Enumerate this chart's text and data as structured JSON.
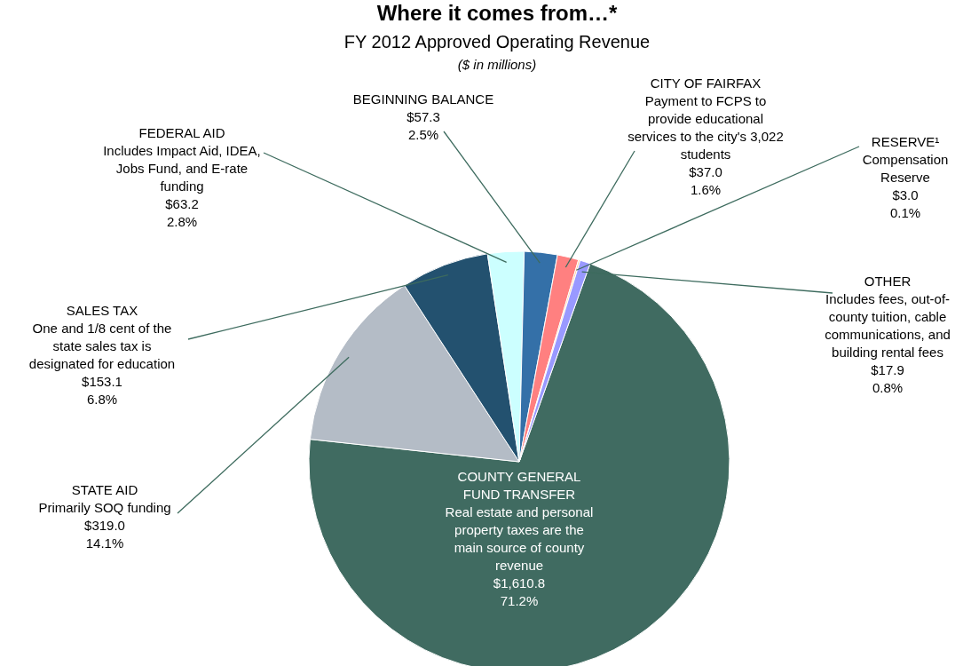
{
  "chart_data": {
    "type": "pie",
    "title": "Where it comes from…*",
    "subtitle": "FY 2012 Approved Operating Revenue",
    "annotations": [
      "($ in millions)"
    ],
    "categories": [
      "COUNTY GENERAL\nFUND TRANSFER\nReal estate and personal\nproperty taxes are the\nmain source of county\nrevenue",
      "STATE AID\nPrimarily SOQ funding",
      "SALES TAX\nOne and 1/8 cent of the\nstate sales tax is\ndesignated for education",
      "FEDERAL AID\nIncludes Impact Aid, IDEA,\nJobs Fund, and E-rate\nfunding",
      "BEGINNING BALANCE",
      "CITY OF FAIRFAX\nPayment to FCPS to\nprovide educational\nservices to the city's 3,022\nstudents",
      "RESERVE¹\nCompensation\nReserve",
      "OTHER\nIncludes fees, out-of-\ncounty tuition, cable\ncommunications, and\nbuilding rental fees"
    ],
    "values": [
      1610.8,
      319.0,
      153.1,
      63.2,
      57.3,
      37.0,
      3.0,
      17.9
    ],
    "value_labels": [
      "$1,610.8\n71.2%",
      "$319.0\n14.1%",
      "$153.1\n6.8%",
      "$63.2\n2.8%",
      "$57.3\n2.5%",
      "$37.0\n1.6%",
      "$3.0\n0.1%",
      "$17.9\n0.8%"
    ],
    "colors": [
      "#406b61",
      "#b4bcc6",
      "#23516f",
      "#ccffff",
      "#3470a8",
      "#ff8080",
      "#ffcc99",
      "#9999ff"
    ]
  }
}
